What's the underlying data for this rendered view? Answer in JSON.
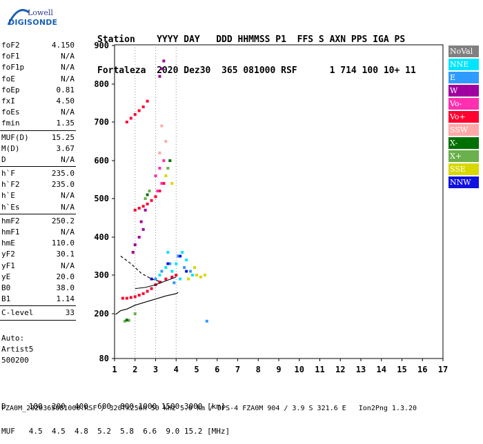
{
  "logo": {
    "line1": "Lowell",
    "line2": "DIGISONDE"
  },
  "header": {
    "line1": [
      "Station",
      "YYYY DAY",
      "DDD HHMMSS P1",
      "FFS S AXN PPS IGA PS"
    ],
    "line2": [
      "Fortaleza",
      "2020 Dez30",
      "365 081000 RSF",
      "1 714 100 10+ 11"
    ]
  },
  "params": [
    [
      {
        "name": "foF2",
        "value": "4.150"
      },
      {
        "name": "foF1",
        "value": "N/A"
      },
      {
        "name": "foF1p",
        "value": "N/A"
      },
      {
        "name": "foE",
        "value": "N/A"
      },
      {
        "name": "foEp",
        "value": "0.81"
      },
      {
        "name": "fxI",
        "value": "4.50"
      },
      {
        "name": "foEs",
        "value": "N/A"
      },
      {
        "name": "fmin",
        "value": "1.35"
      }
    ],
    [
      {
        "name": "MUF(D)",
        "value": "15.25"
      },
      {
        "name": "M(D)",
        "value": "3.67"
      },
      {
        "name": "D",
        "value": "N/A"
      }
    ],
    [
      {
        "name": "h`F",
        "value": "235.0"
      },
      {
        "name": "h`F2",
        "value": "235.0"
      },
      {
        "name": "h`E",
        "value": "N/A"
      },
      {
        "name": "h`Es",
        "value": "N/A"
      }
    ],
    [
      {
        "name": "hmF2",
        "value": "250.2"
      },
      {
        "name": "hmF1",
        "value": "N/A"
      },
      {
        "name": "hmE",
        "value": "110.0"
      },
      {
        "name": "yF2",
        "value": "30.1"
      },
      {
        "name": "yF1",
        "value": "N/A"
      },
      {
        "name": "yE",
        "value": "20.0"
      },
      {
        "name": "B0",
        "value": "38.0"
      },
      {
        "name": "B1",
        "value": "1.14"
      }
    ],
    [
      {
        "name": "C-level",
        "value": "33"
      }
    ]
  ],
  "auto": [
    "Auto:",
    "Artist5",
    "500200"
  ],
  "legend": [
    {
      "label": "NoVal",
      "color": "#808080"
    },
    {
      "label": "NNE",
      "color": "#00e5ff"
    },
    {
      "label": "E",
      "color": "#2f9bff"
    },
    {
      "label": "W",
      "color": "#a000a0"
    },
    {
      "label": "Vo-",
      "color": "#ff2fb0"
    },
    {
      "label": "Vo+",
      "color": "#ff0030"
    },
    {
      "label": "SSW",
      "color": "#ffa8a8"
    },
    {
      "label": "X-",
      "color": "#007000"
    },
    {
      "label": "X+",
      "color": "#6ab04c"
    },
    {
      "label": "SSE",
      "color": "#d8d800"
    },
    {
      "label": "NNW",
      "color": "#1010e0"
    }
  ],
  "bottom": {
    "line1": "D     100  200  400  600  800 1000 1500 3000 [km]",
    "line2": "MUF   4.5  4.5  4.8  5.2  5.8  6.6  9.0 15.2 [MHz]"
  },
  "footer": "FZA0M_2020365081000.RSF / 320fx256h 50 kHz 5.0 km / DPS-4 FZA0M 904 / 3.9 S 321.6 E   Ion2Png 1.3.20",
  "chart_data": {
    "type": "scatter",
    "title": "",
    "xlabel": "",
    "ylabel": "",
    "xlim": [
      1,
      17
    ],
    "ylim": [
      80,
      900
    ],
    "x_ticks": [
      1,
      2,
      3,
      4,
      5,
      6,
      7,
      8,
      9,
      10,
      11,
      12,
      13,
      14,
      15,
      16,
      17
    ],
    "y_ticks": [
      80,
      200,
      300,
      400,
      500,
      600,
      700,
      800,
      900
    ],
    "vertical_gridlines": [
      2,
      3,
      4
    ],
    "series": [
      {
        "name": "Vo+",
        "color": "#ff0030",
        "points": [
          [
            1.4,
            240
          ],
          [
            1.6,
            240
          ],
          [
            1.8,
            242
          ],
          [
            2.0,
            244
          ],
          [
            2.2,
            248
          ],
          [
            2.4,
            252
          ],
          [
            2.6,
            258
          ],
          [
            2.8,
            265
          ],
          [
            3.0,
            275
          ],
          [
            3.2,
            282
          ],
          [
            3.5,
            290
          ],
          [
            3.8,
            295
          ],
          [
            4.0,
            300
          ],
          [
            2.0,
            470
          ],
          [
            2.2,
            475
          ],
          [
            2.4,
            480
          ],
          [
            2.6,
            486
          ],
          [
            2.8,
            495
          ],
          [
            3.0,
            505
          ],
          [
            3.2,
            520
          ],
          [
            3.4,
            540
          ],
          [
            1.6,
            700
          ],
          [
            1.8,
            710
          ],
          [
            2.0,
            720
          ],
          [
            2.2,
            730
          ],
          [
            2.4,
            740
          ],
          [
            2.6,
            755
          ]
        ]
      },
      {
        "name": "NNE",
        "color": "#00e5ff",
        "points": [
          [
            3.2,
            300
          ],
          [
            3.5,
            320
          ],
          [
            3.8,
            310
          ],
          [
            4.0,
            330
          ],
          [
            4.2,
            290
          ],
          [
            4.5,
            340
          ],
          [
            4.8,
            300
          ],
          [
            3.6,
            360
          ],
          [
            4.3,
            360
          ]
        ]
      },
      {
        "name": "E",
        "color": "#2f9bff",
        "points": [
          [
            3.0,
            290
          ],
          [
            3.3,
            310
          ],
          [
            3.7,
            330
          ],
          [
            4.1,
            350
          ],
          [
            4.4,
            320
          ],
          [
            4.7,
            310
          ],
          [
            3.9,
            280
          ],
          [
            5.5,
            180
          ]
        ]
      },
      {
        "name": "W",
        "color": "#a000a0",
        "points": [
          [
            2.0,
            380
          ],
          [
            2.2,
            400
          ],
          [
            2.4,
            420
          ],
          [
            1.9,
            360
          ],
          [
            2.3,
            440
          ],
          [
            2.5,
            470
          ],
          [
            3.2,
            820
          ],
          [
            3.4,
            860
          ],
          [
            3.3,
            840
          ]
        ]
      },
      {
        "name": "Vo-",
        "color": "#ff2fb0",
        "points": [
          [
            3.0,
            560
          ],
          [
            3.2,
            580
          ],
          [
            3.4,
            600
          ],
          [
            3.1,
            520
          ],
          [
            3.3,
            540
          ]
        ]
      },
      {
        "name": "SSE",
        "color": "#d8d800",
        "points": [
          [
            4.6,
            290
          ],
          [
            5.0,
            300
          ],
          [
            5.2,
            295
          ],
          [
            5.4,
            300
          ],
          [
            4.9,
            320
          ],
          [
            3.8,
            540
          ],
          [
            3.5,
            560
          ]
        ]
      },
      {
        "name": "X+",
        "color": "#6ab04c",
        "points": [
          [
            1.5,
            180
          ],
          [
            1.7,
            182
          ],
          [
            2.5,
            500
          ],
          [
            2.7,
            520
          ],
          [
            3.6,
            580
          ],
          [
            2.0,
            200
          ]
        ]
      },
      {
        "name": "X-",
        "color": "#007000",
        "points": [
          [
            1.6,
            183
          ],
          [
            2.6,
            510
          ],
          [
            3.7,
            600
          ]
        ]
      },
      {
        "name": "NNW",
        "color": "#1010e0",
        "points": [
          [
            2.8,
            290
          ],
          [
            3.6,
            330
          ],
          [
            4.2,
            350
          ],
          [
            4.5,
            310
          ]
        ]
      },
      {
        "name": "SSW",
        "color": "#ffa8a8",
        "points": [
          [
            3.3,
            690
          ],
          [
            3.5,
            650
          ],
          [
            3.2,
            620
          ]
        ]
      }
    ],
    "profile_line": [
      [
        1.05,
        198
      ],
      [
        1.3,
        208
      ],
      [
        1.6,
        212
      ],
      [
        2.0,
        222
      ],
      [
        2.5,
        230
      ],
      [
        3.0,
        238
      ],
      [
        3.5,
        246
      ],
      [
        4.0,
        252
      ],
      [
        4.1,
        255
      ]
    ],
    "dashed_line": [
      [
        1.3,
        350
      ],
      [
        1.8,
        330
      ],
      [
        2.3,
        305
      ],
      [
        2.8,
        290
      ],
      [
        3.3,
        282
      ]
    ],
    "extra_line": [
      [
        2.0,
        265
      ],
      [
        2.5,
        268
      ],
      [
        3.0,
        275
      ],
      [
        3.5,
        285
      ],
      [
        4.0,
        295
      ]
    ]
  }
}
